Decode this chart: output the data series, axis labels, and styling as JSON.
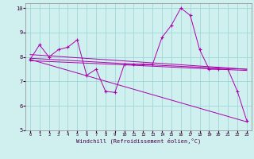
{
  "xlabel": "Windchill (Refroidissement éolien,°C)",
  "xlim": [
    -0.5,
    23.5
  ],
  "ylim": [
    5,
    10.2
  ],
  "yticks": [
    5,
    6,
    7,
    8,
    9,
    10
  ],
  "xticks": [
    0,
    1,
    2,
    3,
    4,
    5,
    6,
    7,
    8,
    9,
    10,
    11,
    12,
    13,
    14,
    15,
    16,
    17,
    18,
    19,
    20,
    21,
    22,
    23
  ],
  "background_color": "#d0f0f0",
  "grid_color": "#a0d8d8",
  "line_color": "#aa00aa",
  "line1_x": [
    0,
    1,
    2,
    3,
    4,
    5,
    6,
    7,
    8,
    9,
    10,
    11,
    12,
    13,
    14,
    15,
    16,
    17,
    18,
    19,
    20,
    21,
    22,
    23
  ],
  "line1_y": [
    7.9,
    8.5,
    8.0,
    8.3,
    8.4,
    8.7,
    7.25,
    7.5,
    6.6,
    6.55,
    7.7,
    7.7,
    7.7,
    7.7,
    8.8,
    9.3,
    10.0,
    9.7,
    8.3,
    7.5,
    7.5,
    7.5,
    6.6,
    5.4
  ],
  "line2_x": [
    0,
    23
  ],
  "line2_y": [
    8.1,
    7.5
  ],
  "line3_x": [
    0,
    10,
    17,
    23
  ],
  "line3_y": [
    7.95,
    7.73,
    7.6,
    7.5
  ],
  "line4_x": [
    0,
    23
  ],
  "line4_y": [
    7.9,
    5.35
  ],
  "line5_x": [
    0,
    10,
    17,
    23
  ],
  "line5_y": [
    7.85,
    7.68,
    7.55,
    7.45
  ]
}
